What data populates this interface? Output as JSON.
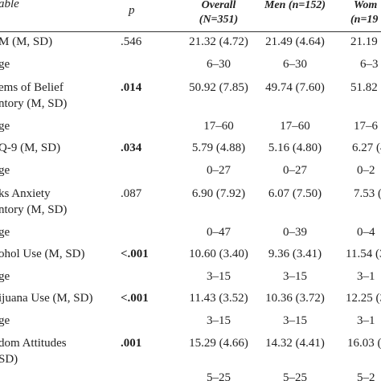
{
  "headers": {
    "variable": "able",
    "p": "p",
    "overall_line1": "Overall",
    "overall_line2": "(N=351)",
    "men": "Men (n=152)",
    "women_line1": "Wom",
    "women_line2": "(n=19"
  },
  "rows": [
    {
      "label": "M (M, SD)",
      "p": ".546",
      "p_bold": false,
      "overall": "21.32 (4.72)",
      "men": "21.49 (4.64)",
      "women": "21.19 ("
    },
    {
      "label": "ge",
      "p": "",
      "overall": "6–30",
      "men": "6–30",
      "women": "6–3"
    },
    {
      "label": "ems of Belief",
      "label2": "ntory (M, SD)",
      "p": ".014",
      "p_bold": true,
      "overall": "50.92 (7.85)",
      "men": "49.74 (7.60)",
      "women": "51.82 ("
    },
    {
      "label": "ge",
      "p": "",
      "overall": "17–60",
      "men": "17–60",
      "women": "17–6"
    },
    {
      "label": "Q-9 (M, SD)",
      "p": ".034",
      "p_bold": true,
      "overall": "5.79 (4.88)",
      "men": "5.16 (4.80)",
      "women": "6.27 (4"
    },
    {
      "label": "ge",
      "p": "",
      "overall": "0–27",
      "men": "0–27",
      "women": "0–2"
    },
    {
      "label": "ks Anxiety",
      "label2": "ntory (M, SD)",
      "p": ".087",
      "p_bold": false,
      "overall": "6.90 (7.92)",
      "men": "6.07 (7.50)",
      "women": "7.53 (8"
    },
    {
      "label": "ge",
      "p": "",
      "overall": "0–47",
      "men": "0–39",
      "women": "0–4"
    },
    {
      "label": "ohol Use (M, SD)",
      "p": "<.001",
      "p_bold": true,
      "overall": "10.60 (3.40)",
      "men": "9.36 (3.41)",
      "women": "11.54 (3"
    },
    {
      "label": "ge",
      "p": "",
      "overall": "3–15",
      "men": "3–15",
      "women": "3–1"
    },
    {
      "label": "ijuana Use (M, SD)",
      "p": "<.001",
      "p_bold": true,
      "overall": "11.43 (3.52)",
      "men": "10.36 (3.72)",
      "women": "12.25 (3"
    },
    {
      "label": "ge",
      "p": "",
      "overall": "3–15",
      "men": "3–15",
      "women": "3–1"
    },
    {
      "label": "dom Attitudes",
      "label2": "SD)",
      "p": ".001",
      "p_bold": true,
      "overall": "15.29 (4.66)",
      "men": "14.32 (4.41)",
      "women": "16.03 (4"
    },
    {
      "label": "",
      "p": "",
      "overall": "5–25",
      "men": "5–25",
      "women": "5–2"
    }
  ]
}
